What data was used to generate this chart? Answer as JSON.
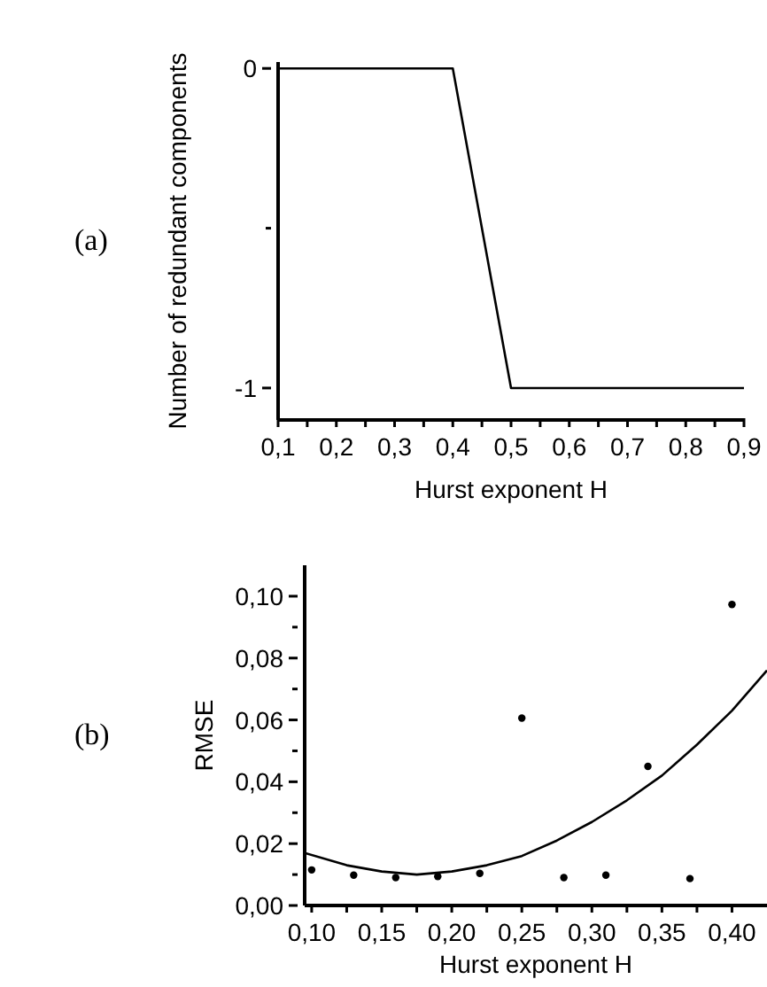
{
  "chart_data": [
    {
      "type": "line",
      "xlabel": "Hurst exponent H",
      "ylabel": "Number of redundant components",
      "annotations": [
        "(a)"
      ],
      "marker": "none",
      "grid": false,
      "x": [
        0.1,
        0.4,
        0.5,
        0.9
      ],
      "values": [
        0,
        0,
        -1,
        -1
      ],
      "color": "#000000",
      "xlim": [
        0.1,
        0.9
      ],
      "ylim": [
        -1.1,
        0.02
      ],
      "xticks": [
        {
          "value": 0.1,
          "label": "0,1"
        },
        {
          "value": 0.15,
          "label": null
        },
        {
          "value": 0.2,
          "label": "0,2"
        },
        {
          "value": 0.25,
          "label": null
        },
        {
          "value": 0.3,
          "label": "0,3"
        },
        {
          "value": 0.35,
          "label": null
        },
        {
          "value": 0.4,
          "label": "0,4"
        },
        {
          "value": 0.45,
          "label": null
        },
        {
          "value": 0.5,
          "label": "0,5"
        },
        {
          "value": 0.55,
          "label": null
        },
        {
          "value": 0.6,
          "label": "0,6"
        },
        {
          "value": 0.65,
          "label": null
        },
        {
          "value": 0.7,
          "label": "0,7"
        },
        {
          "value": 0.75,
          "label": null
        },
        {
          "value": 0.8,
          "label": "0,8"
        },
        {
          "value": 0.85,
          "label": null
        },
        {
          "value": 0.9,
          "label": "0,9"
        }
      ],
      "yticks": [
        {
          "value": -1,
          "label": "-1"
        },
        {
          "value": -0.5,
          "label": null
        },
        0
      ]
    },
    {
      "type": "scatter",
      "xlabel": "Hurst exponent H",
      "ylabel": "RMSE",
      "annotations": [
        "(b)"
      ],
      "grid": false,
      "series": [
        {
          "marker": "circle",
          "color": "#000000",
          "x": [
            0.1,
            0.13,
            0.16,
            0.19,
            0.22,
            0.25,
            0.28,
            0.31,
            0.34,
            0.37,
            0.4
          ],
          "values": [
            0.0115,
            0.0098,
            0.009,
            0.0094,
            0.0104,
            0.0606,
            0.009,
            0.0098,
            0.045,
            0.0087,
            0.0973
          ]
        },
        {
          "type": "line",
          "marker": "none",
          "color": "#000000",
          "x": [
            0.095,
            0.125,
            0.15,
            0.175,
            0.2,
            0.225,
            0.25,
            0.275,
            0.3,
            0.325,
            0.35,
            0.375,
            0.4,
            0.425
          ],
          "values": [
            0.017,
            0.013,
            0.011,
            0.01,
            0.011,
            0.013,
            0.016,
            0.021,
            0.027,
            0.034,
            0.042,
            0.052,
            0.063,
            0.076
          ]
        }
      ],
      "xlim": [
        0.095,
        0.425
      ],
      "ylim": [
        0,
        0.11
      ],
      "xticks": [
        {
          "value": 0.1,
          "label": "0,10"
        },
        {
          "value": 0.125,
          "label": null
        },
        {
          "value": 0.15,
          "label": "0,15"
        },
        {
          "value": 0.175,
          "label": null
        },
        {
          "value": 0.2,
          "label": "0,20"
        },
        {
          "value": 0.225,
          "label": null
        },
        {
          "value": 0.25,
          "label": "0,25"
        },
        {
          "value": 0.275,
          "label": null
        },
        {
          "value": 0.3,
          "label": "0,30"
        },
        {
          "value": 0.325,
          "label": null
        },
        {
          "value": 0.35,
          "label": "0,35"
        },
        {
          "value": 0.375,
          "label": null
        },
        {
          "value": 0.4,
          "label": "0,40"
        }
      ],
      "yticks": [
        {
          "value": 0,
          "label": "0,00"
        },
        {
          "value": 0.01,
          "label": null
        },
        {
          "value": 0.02,
          "label": "0,02"
        },
        {
          "value": 0.03,
          "label": null
        },
        {
          "value": 0.04,
          "label": "0,04"
        },
        {
          "value": 0.05,
          "label": null
        },
        {
          "value": 0.06,
          "label": "0,06"
        },
        {
          "value": 0.07,
          "label": null
        },
        {
          "value": 0.08,
          "label": "0,08"
        },
        {
          "value": 0.09,
          "label": null
        },
        {
          "value": 0.1,
          "label": "0,10"
        }
      ]
    }
  ]
}
